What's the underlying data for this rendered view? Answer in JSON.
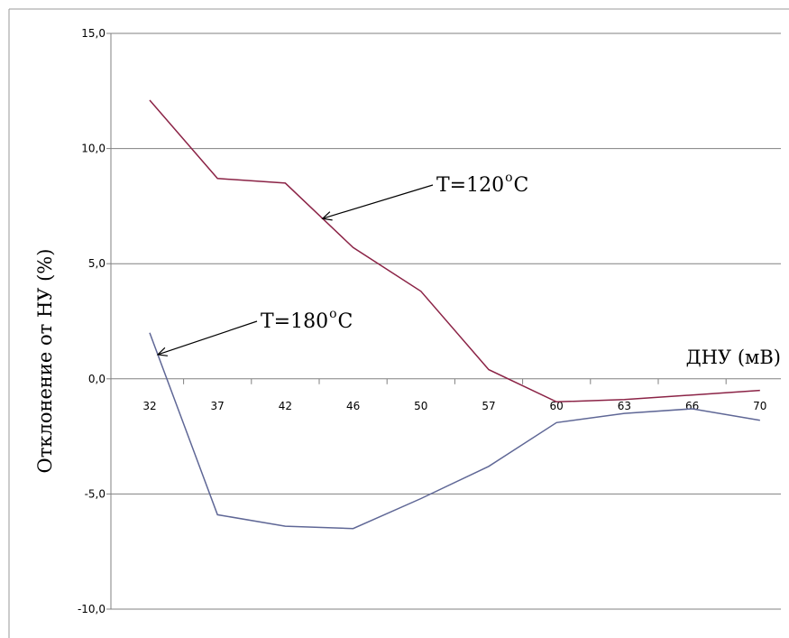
{
  "chart_data": {
    "type": "line",
    "xlabel": "ДНУ (мВ)",
    "ylabel": "Отклонение от НУ (%)",
    "categories": [
      "32",
      "37",
      "42",
      "46",
      "50",
      "57",
      "60",
      "63",
      "66",
      "70"
    ],
    "y_ticks": [
      "15,0",
      "10,0",
      "5,0",
      "0,0",
      "-5,0",
      "-10,0"
    ],
    "ylim": [
      -10,
      15
    ],
    "grid": "horizontal",
    "legend": "none",
    "series": [
      {
        "color": "#8b2346",
        "values": [
          12.1,
          8.7,
          8.5,
          5.7,
          3.8,
          0.4,
          -1.0,
          -0.9,
          -0.7,
          -0.5
        ]
      },
      {
        "color": "#5f6796",
        "values": [
          2.0,
          -5.9,
          -6.4,
          -6.5,
          -5.2,
          -3.8,
          -1.9,
          -1.5,
          -1.3,
          -1.8
        ]
      }
    ],
    "annotations": [
      {
        "text": "T=120",
        "sup": "o",
        "unit": "C",
        "series": 0
      },
      {
        "text": "T=180",
        "sup": "o",
        "unit": "C",
        "series": 1
      }
    ]
  }
}
